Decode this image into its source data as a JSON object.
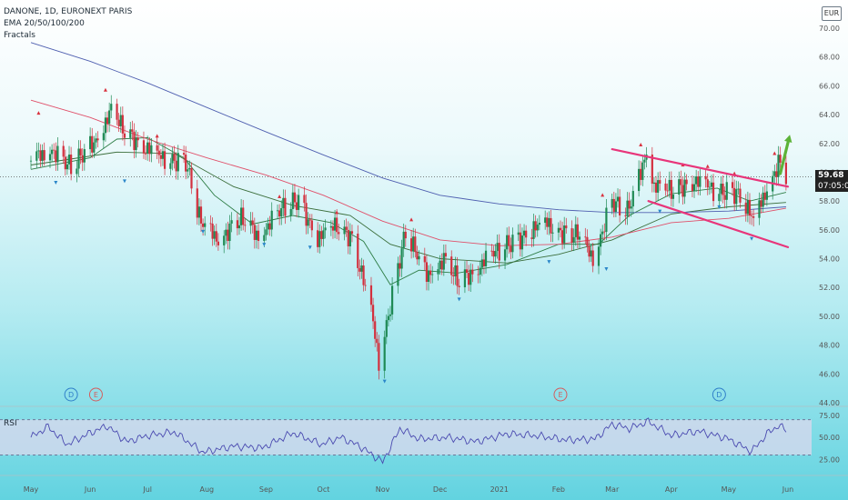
{
  "header": {
    "symbol_line": "DANONE, 1D, EURONEXT PARIS",
    "ema_line": "EMA 20/50/100/200",
    "fractals_line": "Fractals",
    "currency": "EUR",
    "last_price": "59.68",
    "countdown": "07:05:03"
  },
  "chart_data": [
    {
      "type": "candlestick",
      "symbol": "DANONE",
      "interval": "1D",
      "exchange": "EURONEXT PARIS",
      "currency": "EUR",
      "ylim": [
        44,
        70
      ],
      "y_ticks": [
        "70.00",
        "68.00",
        "66.00",
        "64.00",
        "62.00",
        "60.00",
        "58.00",
        "56.00",
        "54.00",
        "52.00",
        "50.00",
        "48.00",
        "46.00",
        "44.00"
      ],
      "x_ticks": [
        "May",
        "Jun",
        "Jul",
        "Aug",
        "Sep",
        "Oct",
        "Nov",
        "Dec",
        "2021",
        "Feb",
        "Mar",
        "Apr",
        "May",
        "Jun"
      ],
      "last_price": 59.68,
      "close_path": [
        {
          "date": "2020-05-01",
          "value": 60.8
        },
        {
          "date": "2020-05-12",
          "value": 61.6
        },
        {
          "date": "2020-05-22",
          "value": 60.3
        },
        {
          "date": "2020-06-03",
          "value": 62.1
        },
        {
          "date": "2020-06-12",
          "value": 64.2
        },
        {
          "date": "2020-06-18",
          "value": 63.0
        },
        {
          "date": "2020-06-30",
          "value": 61.7
        },
        {
          "date": "2020-07-09",
          "value": 60.9
        },
        {
          "date": "2020-07-21",
          "value": 60.8
        },
        {
          "date": "2020-07-29",
          "value": 56.4
        },
        {
          "date": "2020-08-07",
          "value": 55.4
        },
        {
          "date": "2020-08-19",
          "value": 56.7
        },
        {
          "date": "2020-08-28",
          "value": 55.6
        },
        {
          "date": "2020-09-09",
          "value": 57.4
        },
        {
          "date": "2020-09-18",
          "value": 58.1
        },
        {
          "date": "2020-09-28",
          "value": 55.4
        },
        {
          "date": "2020-10-08",
          "value": 56.3
        },
        {
          "date": "2020-10-16",
          "value": 55.5
        },
        {
          "date": "2020-10-26",
          "value": 50.3
        },
        {
          "date": "2020-10-30",
          "value": 46.9
        },
        {
          "date": "2020-11-09",
          "value": 53.4
        },
        {
          "date": "2020-11-13",
          "value": 55.8
        },
        {
          "date": "2020-11-24",
          "value": 52.9
        },
        {
          "date": "2020-12-03",
          "value": 53.9
        },
        {
          "date": "2020-12-11",
          "value": 52.3
        },
        {
          "date": "2020-12-23",
          "value": 53.7
        },
        {
          "date": "2021-01-05",
          "value": 55.0
        },
        {
          "date": "2021-01-14",
          "value": 55.6
        },
        {
          "date": "2021-01-25",
          "value": 56.5
        },
        {
          "date": "2021-02-02",
          "value": 55.9
        },
        {
          "date": "2021-02-11",
          "value": 55.6
        },
        {
          "date": "2021-02-19",
          "value": 54.1
        },
        {
          "date": "2021-03-01",
          "value": 57.9
        },
        {
          "date": "2021-03-09",
          "value": 57.2
        },
        {
          "date": "2021-03-19",
          "value": 61.4
        },
        {
          "date": "2021-03-23",
          "value": 59.0
        },
        {
          "date": "2021-04-01",
          "value": 58.7
        },
        {
          "date": "2021-04-12",
          "value": 59.4
        },
        {
          "date": "2021-04-23",
          "value": 58.8
        },
        {
          "date": "2021-05-05",
          "value": 58.6
        },
        {
          "date": "2021-05-14",
          "value": 56.7
        },
        {
          "date": "2021-05-21",
          "value": 58.9
        },
        {
          "date": "2021-05-27",
          "value": 60.6
        },
        {
          "date": "2021-05-31",
          "value": 59.68
        }
      ],
      "ema_series": [
        {
          "period": 20,
          "color": "#2e7d46",
          "values": [
            {
              "date": "2020-05-01",
              "value": 60.2
            },
            {
              "date": "2020-06-01",
              "value": 61.0
            },
            {
              "date": "2020-06-15",
              "value": 62.3
            },
            {
              "date": "2020-07-01",
              "value": 62.4
            },
            {
              "date": "2020-07-20",
              "value": 61.0
            },
            {
              "date": "2020-08-05",
              "value": 58.4
            },
            {
              "date": "2020-08-25",
              "value": 56.4
            },
            {
              "date": "2020-09-15",
              "value": 57.0
            },
            {
              "date": "2020-10-05",
              "value": 56.5
            },
            {
              "date": "2020-10-22",
              "value": 55.2
            },
            {
              "date": "2020-11-05",
              "value": 52.2
            },
            {
              "date": "2020-11-20",
              "value": 53.2
            },
            {
              "date": "2020-12-10",
              "value": 53.0
            },
            {
              "date": "2021-01-05",
              "value": 53.6
            },
            {
              "date": "2021-02-01",
              "value": 55.0
            },
            {
              "date": "2021-02-22",
              "value": 55.0
            },
            {
              "date": "2021-03-10",
              "value": 57.0
            },
            {
              "date": "2021-04-01",
              "value": 58.5
            },
            {
              "date": "2021-04-25",
              "value": 58.9
            },
            {
              "date": "2021-05-12",
              "value": 58.0
            },
            {
              "date": "2021-05-31",
              "value": 58.6
            }
          ]
        },
        {
          "period": 50,
          "color": "#3b6e3b",
          "values": [
            {
              "date": "2020-05-01",
              "value": 60.5
            },
            {
              "date": "2020-06-15",
              "value": 61.4
            },
            {
              "date": "2020-07-15",
              "value": 61.3
            },
            {
              "date": "2020-08-15",
              "value": 59.0
            },
            {
              "date": "2020-09-15",
              "value": 57.7
            },
            {
              "date": "2020-10-15",
              "value": 57.0
            },
            {
              "date": "2020-11-05",
              "value": 55.0
            },
            {
              "date": "2020-12-01",
              "value": 54.0
            },
            {
              "date": "2021-01-05",
              "value": 53.7
            },
            {
              "date": "2021-02-01",
              "value": 54.3
            },
            {
              "date": "2021-03-01",
              "value": 55.3
            },
            {
              "date": "2021-04-01",
              "value": 57.1
            },
            {
              "date": "2021-05-01",
              "value": 57.6
            },
            {
              "date": "2021-05-31",
              "value": 57.9
            }
          ]
        },
        {
          "period": 100,
          "color": "#e0506a",
          "values": [
            {
              "date": "2020-05-01",
              "value": 65.0
            },
            {
              "date": "2020-06-01",
              "value": 63.8
            },
            {
              "date": "2020-07-01",
              "value": 62.3
            },
            {
              "date": "2020-08-01",
              "value": 61.0
            },
            {
              "date": "2020-09-01",
              "value": 59.8
            },
            {
              "date": "2020-10-01",
              "value": 58.4
            },
            {
              "date": "2020-11-01",
              "value": 56.6
            },
            {
              "date": "2020-12-01",
              "value": 55.3
            },
            {
              "date": "2021-01-01",
              "value": 54.9
            },
            {
              "date": "2021-02-01",
              "value": 55.0
            },
            {
              "date": "2021-03-01",
              "value": 55.5
            },
            {
              "date": "2021-04-01",
              "value": 56.5
            },
            {
              "date": "2021-05-01",
              "value": 56.8
            },
            {
              "date": "2021-05-31",
              "value": 57.5
            }
          ]
        },
        {
          "period": 200,
          "color": "#4f5fb0",
          "values": [
            {
              "date": "2020-05-01",
              "value": 69.0
            },
            {
              "date": "2020-06-01",
              "value": 67.7
            },
            {
              "date": "2020-07-01",
              "value": 66.2
            },
            {
              "date": "2020-08-01",
              "value": 64.5
            },
            {
              "date": "2020-09-01",
              "value": 62.8
            },
            {
              "date": "2020-10-01",
              "value": 61.2
            },
            {
              "date": "2020-11-01",
              "value": 59.6
            },
            {
              "date": "2020-12-01",
              "value": 58.4
            },
            {
              "date": "2021-01-01",
              "value": 57.8
            },
            {
              "date": "2021-02-01",
              "value": 57.4
            },
            {
              "date": "2021-03-01",
              "value": 57.2
            },
            {
              "date": "2021-04-01",
              "value": 57.2
            },
            {
              "date": "2021-05-01",
              "value": 57.3
            },
            {
              "date": "2021-05-31",
              "value": 57.6
            }
          ]
        }
      ],
      "fractals": {
        "up": [
          {
            "date": "2020-05-05",
            "value": 64.0
          },
          {
            "date": "2020-06-09",
            "value": 65.6
          },
          {
            "date": "2020-07-06",
            "value": 62.4
          },
          {
            "date": "2020-09-08",
            "value": 58.2
          },
          {
            "date": "2020-10-08",
            "value": 57.1
          },
          {
            "date": "2020-11-16",
            "value": 56.6
          },
          {
            "date": "2021-01-20",
            "value": 56.0
          },
          {
            "date": "2021-02-24",
            "value": 58.3
          },
          {
            "date": "2021-03-16",
            "value": 61.8
          },
          {
            "date": "2021-04-07",
            "value": 60.4
          },
          {
            "date": "2021-04-20",
            "value": 60.3
          },
          {
            "date": "2021-05-04",
            "value": 59.8
          },
          {
            "date": "2021-05-25",
            "value": 61.2
          }
        ],
        "down": [
          {
            "date": "2020-05-14",
            "value": 59.4
          },
          {
            "date": "2020-06-19",
            "value": 59.5
          },
          {
            "date": "2020-07-30",
            "value": 56.0
          },
          {
            "date": "2020-08-31",
            "value": 55.1
          },
          {
            "date": "2020-09-24",
            "value": 54.9
          },
          {
            "date": "2020-11-02",
            "value": 45.6
          },
          {
            "date": "2020-12-11",
            "value": 51.3
          },
          {
            "date": "2021-01-27",
            "value": 53.9
          },
          {
            "date": "2021-02-26",
            "value": 53.4
          },
          {
            "date": "2021-03-26",
            "value": 57.4
          },
          {
            "date": "2021-04-26",
            "value": 57.7
          },
          {
            "date": "2021-05-13",
            "value": 55.5
          }
        ]
      },
      "reference_line": 59.68,
      "event_markers": [
        {
          "label": "D",
          "date": "2020-05-22"
        },
        {
          "label": "E",
          "date": "2020-06-04"
        },
        {
          "label": "E",
          "date": "2021-02-02"
        },
        {
          "label": "D",
          "date": "2021-04-26"
        }
      ],
      "annotations": [
        {
          "kind": "trendline",
          "color": "#e8357a",
          "from": {
            "date": "2021-03-01",
            "value": 61.6
          },
          "to": {
            "date": "2021-06-01",
            "value": 59.0
          }
        },
        {
          "kind": "trendline",
          "color": "#e8357a",
          "from": {
            "date": "2021-03-20",
            "value": 58.0
          },
          "to": {
            "date": "2021-06-01",
            "value": 54.8
          }
        },
        {
          "kind": "arrow",
          "color": "#5cb338",
          "from": {
            "date": "2021-05-28",
            "value": 59.9
          },
          "to": {
            "date": "2021-06-02",
            "value": 62.6
          }
        }
      ]
    },
    {
      "type": "line",
      "title": "RSI",
      "ylim": [
        15,
        80
      ],
      "y_ticks": [
        "75.00",
        "50.00",
        "25.00"
      ],
      "band": [
        30,
        70
      ],
      "series": [
        {
          "name": "RSI",
          "color": "#4a4ab0",
          "values": [
            {
              "date": "2020-05-01",
              "value": 50
            },
            {
              "date": "2020-05-10",
              "value": 62
            },
            {
              "date": "2020-05-20",
              "value": 42
            },
            {
              "date": "2020-06-01",
              "value": 55
            },
            {
              "date": "2020-06-10",
              "value": 63
            },
            {
              "date": "2020-06-20",
              "value": 45
            },
            {
              "date": "2020-07-01",
              "value": 52
            },
            {
              "date": "2020-07-15",
              "value": 56
            },
            {
              "date": "2020-07-30",
              "value": 33
            },
            {
              "date": "2020-08-15",
              "value": 40
            },
            {
              "date": "2020-08-30",
              "value": 38
            },
            {
              "date": "2020-09-15",
              "value": 55
            },
            {
              "date": "2020-09-30",
              "value": 42
            },
            {
              "date": "2020-10-10",
              "value": 50
            },
            {
              "date": "2020-10-20",
              "value": 40
            },
            {
              "date": "2020-11-01",
              "value": 22
            },
            {
              "date": "2020-11-10",
              "value": 60
            },
            {
              "date": "2020-11-20",
              "value": 48
            },
            {
              "date": "2020-12-05",
              "value": 50
            },
            {
              "date": "2020-12-20",
              "value": 45
            },
            {
              "date": "2021-01-05",
              "value": 54
            },
            {
              "date": "2021-01-20",
              "value": 52
            },
            {
              "date": "2021-02-05",
              "value": 47
            },
            {
              "date": "2021-02-20",
              "value": 48
            },
            {
              "date": "2021-03-01",
              "value": 65
            },
            {
              "date": "2021-03-10",
              "value": 60
            },
            {
              "date": "2021-03-20",
              "value": 68
            },
            {
              "date": "2021-04-01",
              "value": 52
            },
            {
              "date": "2021-04-15",
              "value": 57
            },
            {
              "date": "2021-04-30",
              "value": 49
            },
            {
              "date": "2021-05-13",
              "value": 34
            },
            {
              "date": "2021-05-22",
              "value": 56
            },
            {
              "date": "2021-05-27",
              "value": 63
            },
            {
              "date": "2021-05-31",
              "value": 59
            }
          ]
        }
      ]
    }
  ]
}
